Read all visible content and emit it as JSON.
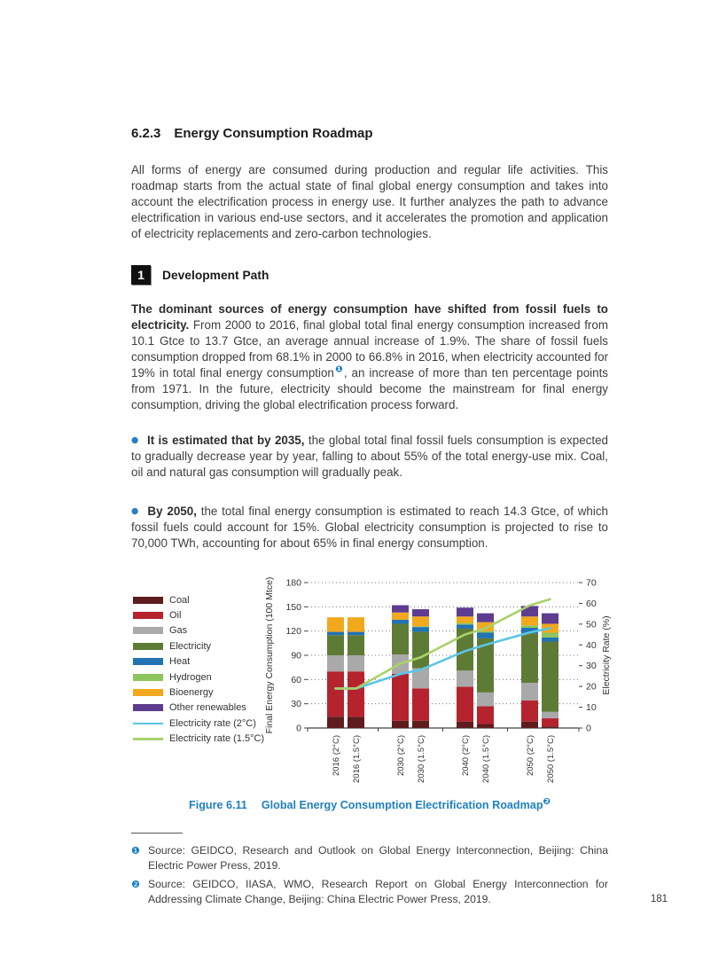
{
  "heading": {
    "number": "6.2.3",
    "title": "Energy Consumption Roadmap"
  },
  "intro": "All forms of energy are consumed during production and regular life activities. This roadmap starts from the actual state of final global energy consumption and takes into account the electrification process in energy use. It further analyzes the path to advance electrification in various end-use sectors, and it accelerates the promotion and application of electricity replacements and zero-carbon technologies.",
  "subsection": {
    "badge": "1",
    "title": "Development Path"
  },
  "para2": {
    "bold": "The dominant sources of energy consumption have shifted from fossil fuels to electricity.",
    "before_note": " From 2000 to 2016, final global total final energy consumption increased from 10.1 Gtce to 13.7 Gtce, an average annual increase of 1.9%. The share of fossil fuels consumption dropped from 68.1% in 2000 to 66.8% in 2016, when electricity accounted for 19% in total final energy consumption",
    "note_marker": "❶",
    "after_note": ", an increase of more than ten percentage points from 1971. In the future, electricity should become the mainstream for final energy consumption, driving the global electrification process forward."
  },
  "bullets": [
    {
      "marker": "●",
      "bold": "It is estimated that by 2035,",
      "text": " the global total final fossil fuels consumption is expected to gradually decrease year by year, falling to about 55% of the total energy-use mix. Coal, oil and natural gas consumption will gradually peak."
    },
    {
      "marker": "●",
      "bold": "By 2050,",
      "text": " the total final energy consumption is estimated to reach 14.3 Gtce, of which fossil fuels could account for 15%. Global electricity consumption is projected to rise to 70,000 TWh, accounting for about 65% in final energy consumption."
    }
  ],
  "chart_data": {
    "type": "bar",
    "subtype": "stacked-bars-with-lines",
    "title": "Global Energy Consumption Electrification Roadmap",
    "categories": [
      "2016 (2°C)",
      "2016 (1.5°C)",
      "2030 (2°C)",
      "2030 (1.5°C)",
      "2040 (2°C)",
      "2040 (1.5°C)",
      "2050 (2°C)",
      "2050 (1.5°C)"
    ],
    "bar_series": [
      {
        "name": "Coal",
        "color": "#5e1c1e",
        "values": [
          14,
          14,
          9,
          9,
          8,
          5,
          8,
          2
        ]
      },
      {
        "name": "Oil",
        "color": "#b5232e",
        "values": [
          56,
          56,
          58,
          40,
          43,
          22,
          26,
          10
        ]
      },
      {
        "name": "Gas",
        "color": "#a9a9a9",
        "values": [
          20,
          20,
          24,
          25,
          20,
          17,
          22,
          8
        ]
      },
      {
        "name": "Electricity",
        "color": "#5e7b35",
        "values": [
          25,
          25,
          38,
          45,
          52,
          67,
          61,
          87
        ]
      },
      {
        "name": "Heat",
        "color": "#2173b4",
        "values": [
          4,
          4,
          5,
          6,
          5,
          7,
          7,
          5
        ]
      },
      {
        "name": "Hydrogen",
        "color": "#8ec45c",
        "values": [
          0,
          0,
          0,
          1,
          2,
          2,
          3,
          6
        ]
      },
      {
        "name": "Bioenergy",
        "color": "#f2a81d",
        "values": [
          18,
          18,
          9,
          12,
          8,
          11,
          11,
          11
        ]
      },
      {
        "name": "Other renewables",
        "color": "#5e3c90",
        "values": [
          0,
          0,
          9,
          9,
          11,
          11,
          13,
          13
        ]
      }
    ],
    "line_series": [
      {
        "name": "Electricity rate (2°C)",
        "color": "#5cc5e6",
        "values": [
          19,
          19,
          26,
          28,
          37,
          40,
          46,
          48
        ]
      },
      {
        "name": "Electricity rate (1.5°C)",
        "color": "#a9d16a",
        "values": [
          19,
          19,
          31,
          34,
          45,
          48,
          59,
          62
        ]
      }
    ],
    "left_axis": {
      "label": "Final Energy Consumption (100 Mtce)",
      "min": 0,
      "max": 180,
      "step": 30
    },
    "right_axis": {
      "label": "Electricity Rate (%)",
      "min": 0,
      "max": 70,
      "step": 10
    },
    "grid": "dotted-horizontal",
    "legend_position": "left"
  },
  "figure": {
    "label": "Figure 6.11",
    "title": "Global Energy Consumption Electrification Roadmap",
    "note_marker": "❷"
  },
  "footnotes": [
    {
      "marker": "❶",
      "text": "Source: GEIDCO, Research and Outlook on Global Energy Interconnection, Beijing: China Electric Power Press, 2019."
    },
    {
      "marker": "❷",
      "text": "Source: GEIDCO, IIASA, WMO, Research Report on Global Energy Interconnection for Addressing Climate Change, Beijing: China Electric Power Press, 2019."
    }
  ],
  "page_number": "181"
}
